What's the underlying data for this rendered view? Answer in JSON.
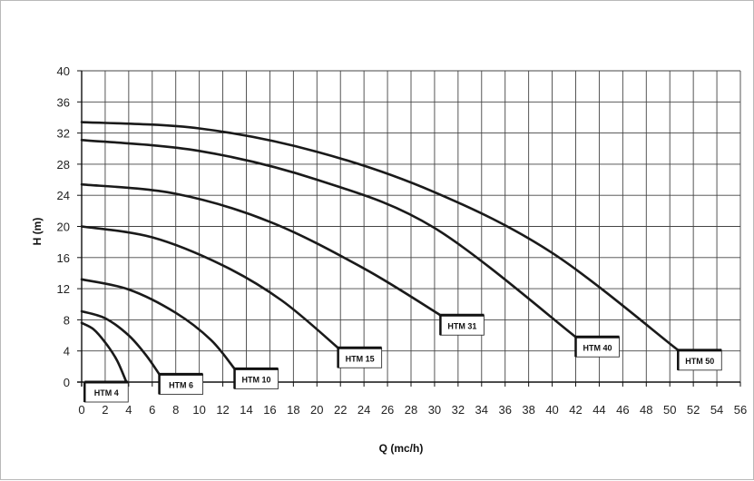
{
  "chart_data": {
    "type": "line",
    "title": "",
    "xlabel": "Q (mc/h)",
    "ylabel": "H (m)",
    "xlim": [
      0,
      56
    ],
    "ylim": [
      0,
      40
    ],
    "xticks": [
      0,
      2,
      4,
      6,
      8,
      10,
      12,
      14,
      16,
      18,
      20,
      22,
      24,
      26,
      28,
      30,
      32,
      34,
      36,
      38,
      40,
      42,
      44,
      46,
      48,
      50,
      52,
      54,
      56
    ],
    "yticks": [
      0,
      4,
      8,
      12,
      16,
      20,
      24,
      28,
      32,
      36,
      40
    ],
    "grid": true,
    "legend": "labels at curve ends",
    "colors": {
      "curve": "#1a1a1a",
      "grid": "#444444"
    },
    "series": [
      {
        "name": "HTM 4",
        "x": [
          0,
          1,
          2,
          3,
          3.8
        ],
        "y": [
          7.6,
          6.8,
          5.1,
          2.8,
          0
        ]
      },
      {
        "name": "HTM 6",
        "x": [
          0,
          2,
          4,
          5.5,
          6.6
        ],
        "y": [
          9.1,
          8.2,
          6.0,
          3.4,
          1.0
        ]
      },
      {
        "name": "HTM 10",
        "x": [
          0,
          4,
          8,
          11,
          13
        ],
        "y": [
          13.2,
          11.9,
          8.9,
          5.4,
          1.7
        ]
      },
      {
        "name": "HTM 15",
        "x": [
          0,
          6,
          12,
          17,
          21.8
        ],
        "y": [
          20.0,
          18.6,
          15.0,
          10.5,
          4.4
        ]
      },
      {
        "name": "HTM 31",
        "x": [
          0,
          8,
          16,
          24,
          30.5
        ],
        "y": [
          25.4,
          24.2,
          20.6,
          14.6,
          8.6
        ]
      },
      {
        "name": "HTM 40",
        "x": [
          0,
          10,
          20,
          30,
          42
        ],
        "y": [
          31.1,
          29.7,
          26.0,
          19.8,
          5.8
        ]
      },
      {
        "name": "HTM 50",
        "x": [
          0,
          10,
          20,
          30,
          40,
          50.7
        ],
        "y": [
          33.4,
          32.6,
          29.6,
          24.4,
          16.6,
          4.1
        ]
      }
    ]
  }
}
